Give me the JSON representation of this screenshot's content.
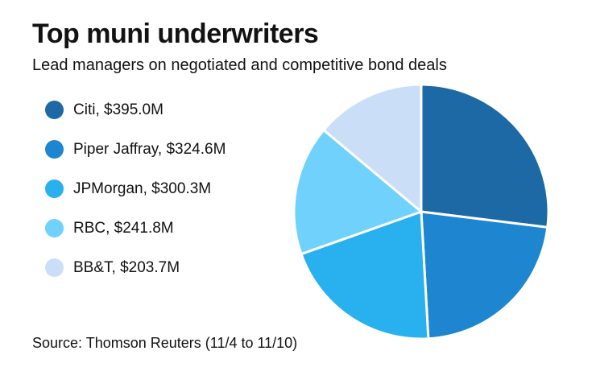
{
  "header": {
    "title": "Top muni underwriters",
    "subtitle": "Lead managers on negotiated and competitive bond deals"
  },
  "footer": {
    "source": "Source: Thomson Reuters (11/4 to 11/10)"
  },
  "chart_data": {
    "type": "pie",
    "title": "Top muni underwriters",
    "subtitle": "Lead managers on negotiated and competitive bond deals",
    "source": "Source: Thomson Reuters (11/4 to 11/10)",
    "start_angle_deg": 0,
    "direction": "clockwise",
    "legend_position": "left",
    "separator_color": "#ffffff",
    "slices": [
      {
        "label": "Citi",
        "value": 395.0,
        "display": "Citi, $395.0M",
        "color": "#1c69a5"
      },
      {
        "label": "Piper Jaffray",
        "value": 324.6,
        "display": "Piper Jaffray, $324.6M",
        "color": "#1e85d0"
      },
      {
        "label": "JPMorgan",
        "value": 300.3,
        "display": "JPMorgan, $300.3M",
        "color": "#29b0ef"
      },
      {
        "label": "RBC",
        "value": 241.8,
        "display": "RBC, $241.8M",
        "color": "#70d2fc"
      },
      {
        "label": "BB&T",
        "value": 203.7,
        "display": "BB&T, $203.7M",
        "color": "#cadff7"
      }
    ]
  }
}
